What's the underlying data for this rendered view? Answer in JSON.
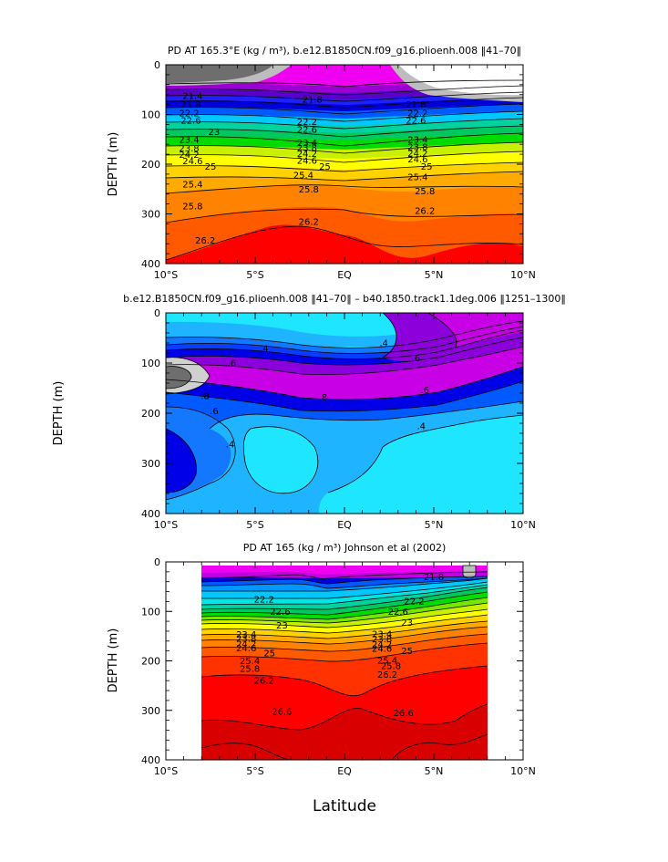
{
  "chart_data": [
    {
      "type": "contour",
      "title": "PD AT 165.3°E (kg / m³), b.e12.B1850CN.f09_g16.plioenh.008 ‖41–70‖",
      "ylabel": "DEPTH (m)",
      "xlabel": "",
      "x_ticks": [
        "10°S",
        "5°S",
        "EQ",
        "5°N",
        "10°N"
      ],
      "y_ticks": [
        "0",
        "100",
        "200",
        "300",
        "400"
      ],
      "xlim": [
        -10,
        10
      ],
      "ylim": [
        400,
        0
      ],
      "contour_interval": 0.4,
      "levels_min": 21.0,
      "levels_max": 26.6,
      "labels": [
        {
          "text": "21.4",
          "lat": -8.5,
          "depth": 62
        },
        {
          "text": "21.8",
          "lat": -8.6,
          "depth": 80
        },
        {
          "text": "22.2",
          "lat": -8.7,
          "depth": 97
        },
        {
          "text": "22.6",
          "lat": -8.6,
          "depth": 112
        },
        {
          "text": "23",
          "lat": -7.3,
          "depth": 135
        },
        {
          "text": "23.4",
          "lat": -8.7,
          "depth": 150
        },
        {
          "text": "23.8",
          "lat": -8.7,
          "depth": 168
        },
        {
          "text": "24.2",
          "lat": -8.7,
          "depth": 181
        },
        {
          "text": "24.6",
          "lat": -8.5,
          "depth": 194
        },
        {
          "text": "25",
          "lat": -7.5,
          "depth": 205
        },
        {
          "text": "25.4",
          "lat": -8.5,
          "depth": 240
        },
        {
          "text": "25.8",
          "lat": -8.5,
          "depth": 284
        },
        {
          "text": "26.2",
          "lat": -7.8,
          "depth": 353
        },
        {
          "text": "21.8",
          "lat": -1.8,
          "depth": 70
        },
        {
          "text": "22.2",
          "lat": -2.1,
          "depth": 115
        },
        {
          "text": "22.6",
          "lat": -2.1,
          "depth": 130
        },
        {
          "text": "23.4",
          "lat": -2.1,
          "depth": 157
        },
        {
          "text": "23.8",
          "lat": -2.1,
          "depth": 167
        },
        {
          "text": "24.2",
          "lat": -2.1,
          "depth": 179
        },
        {
          "text": "24.6",
          "lat": -2.1,
          "depth": 193
        },
        {
          "text": "25",
          "lat": -1.1,
          "depth": 205
        },
        {
          "text": "25.4",
          "lat": -2.3,
          "depth": 222
        },
        {
          "text": "25.8",
          "lat": -2.0,
          "depth": 250
        },
        {
          "text": "26.2",
          "lat": -2.0,
          "depth": 316
        },
        {
          "text": "21.8",
          "lat": 4.0,
          "depth": 80
        },
        {
          "text": "22.2",
          "lat": 4.1,
          "depth": 97
        },
        {
          "text": "22.6",
          "lat": 4.0,
          "depth": 112
        },
        {
          "text": "23.4",
          "lat": 4.1,
          "depth": 150
        },
        {
          "text": "23.8",
          "lat": 4.1,
          "depth": 165
        },
        {
          "text": "24.2",
          "lat": 4.1,
          "depth": 178
        },
        {
          "text": "24.6",
          "lat": 4.1,
          "depth": 190
        },
        {
          "text": "25",
          "lat": 4.6,
          "depth": 205
        },
        {
          "text": "25.4",
          "lat": 4.1,
          "depth": 226
        },
        {
          "text": "25.8",
          "lat": 4.5,
          "depth": 254
        },
        {
          "text": "26.2",
          "lat": 4.5,
          "depth": 294
        }
      ]
    },
    {
      "type": "contour",
      "title": "b.e12.B1850CN.f09_g16.plioenh.008 ‖41–70‖ – b40.1850.track1.1deg.006 ‖1251–1300‖",
      "ylabel": "DEPTH (m)",
      "xlabel": "",
      "x_ticks": [
        "10°S",
        "5°S",
        "EQ",
        "5°N",
        "10°N"
      ],
      "y_ticks": [
        "0",
        "100",
        "200",
        "300",
        "400"
      ],
      "xlim": [
        -10,
        10
      ],
      "ylim": [
        400,
        0
      ],
      "contour_interval": 0.2,
      "labels": [
        {
          "text": ".4",
          "lat": -4.5,
          "depth": 71
        },
        {
          "text": ".4",
          "lat": 2.2,
          "depth": 60
        },
        {
          "text": ".6",
          "lat": -6.3,
          "depth": 100
        },
        {
          "text": ".6",
          "lat": 4.0,
          "depth": 90
        },
        {
          "text": ".8",
          "lat": -7.8,
          "depth": 165
        },
        {
          "text": ".8",
          "lat": -1.2,
          "depth": 168
        },
        {
          "text": ".6",
          "lat": -7.3,
          "depth": 195
        },
        {
          "text": ".6",
          "lat": 4.5,
          "depth": 154
        },
        {
          "text": ".4",
          "lat": -6.4,
          "depth": 262
        },
        {
          "text": ".4",
          "lat": 4.3,
          "depth": 225
        }
      ]
    },
    {
      "type": "contour",
      "title": "PD AT 165 (kg / m³) Johnson et al (2002)",
      "ylabel": "DEPTH (m)",
      "xlabel": "Latitude",
      "x_ticks": [
        "10°S",
        "5°S",
        "EQ",
        "5°N",
        "10°N"
      ],
      "y_ticks": [
        "0",
        "100",
        "200",
        "300",
        "400"
      ],
      "xlim": [
        -10,
        10
      ],
      "ylim": [
        400,
        0
      ],
      "data_extent_lat": [
        -8,
        8
      ],
      "contour_interval": 0.4,
      "labels": [
        {
          "text": "21.8",
          "lat": 5.0,
          "depth": 30
        },
        {
          "text": "22.2",
          "lat": -4.5,
          "depth": 76
        },
        {
          "text": "22.2",
          "lat": 3.9,
          "depth": 79
        },
        {
          "text": "22.6",
          "lat": -3.6,
          "depth": 100
        },
        {
          "text": "22.6",
          "lat": 3.0,
          "depth": 100
        },
        {
          "text": "23",
          "lat": -3.5,
          "depth": 128
        },
        {
          "text": "23",
          "lat": 3.5,
          "depth": 123
        },
        {
          "text": "23.4",
          "lat": -5.5,
          "depth": 147
        },
        {
          "text": "23.8",
          "lat": -5.5,
          "depth": 155
        },
        {
          "text": "24.2",
          "lat": -5.5,
          "depth": 166
        },
        {
          "text": "24.6",
          "lat": -5.5,
          "depth": 174
        },
        {
          "text": "25",
          "lat": -4.2,
          "depth": 184
        },
        {
          "text": "25.4",
          "lat": -5.3,
          "depth": 200
        },
        {
          "text": "25.8",
          "lat": -5.3,
          "depth": 216
        },
        {
          "text": "26.2",
          "lat": -4.5,
          "depth": 240
        },
        {
          "text": "23.4",
          "lat": 2.1,
          "depth": 146
        },
        {
          "text": "23.8",
          "lat": 2.1,
          "depth": 156
        },
        {
          "text": "24.2",
          "lat": 2.1,
          "depth": 167
        },
        {
          "text": "24.6",
          "lat": 2.1,
          "depth": 175
        },
        {
          "text": "25",
          "lat": 3.5,
          "depth": 180
        },
        {
          "text": "25.4",
          "lat": 2.4,
          "depth": 199
        },
        {
          "text": "25.8",
          "lat": 2.6,
          "depth": 210
        },
        {
          "text": "26.2",
          "lat": 2.4,
          "depth": 228
        },
        {
          "text": "26.6",
          "lat": -3.5,
          "depth": 302
        },
        {
          "text": "26.6",
          "lat": 3.3,
          "depth": 305
        }
      ]
    }
  ],
  "colors": {
    "ramp": [
      "#6e6e6e",
      "#bdbdbd",
      "#f000f0",
      "#c000e0",
      "#9b00d2",
      "#5a00c8",
      "#2020ff",
      "#0000d8",
      "#005aff",
      "#0096ff",
      "#00c8ff",
      "#00e6e6",
      "#00d2a0",
      "#00c860",
      "#00dc00",
      "#78e600",
      "#c8f000",
      "#ffff00",
      "#ffd200",
      "#ffaa00",
      "#ff8200",
      "#ff5a00",
      "#ff3200",
      "#ff0000",
      "#d80000"
    ],
    "diff_ramp": [
      "#1ee6ff",
      "#1eb4ff",
      "#1478ff",
      "#0a3cff",
      "#0000e6",
      "#8c00dc",
      "#c800e6",
      "#f000f0",
      "#d0d0d0",
      "#6e6e6e"
    ]
  }
}
